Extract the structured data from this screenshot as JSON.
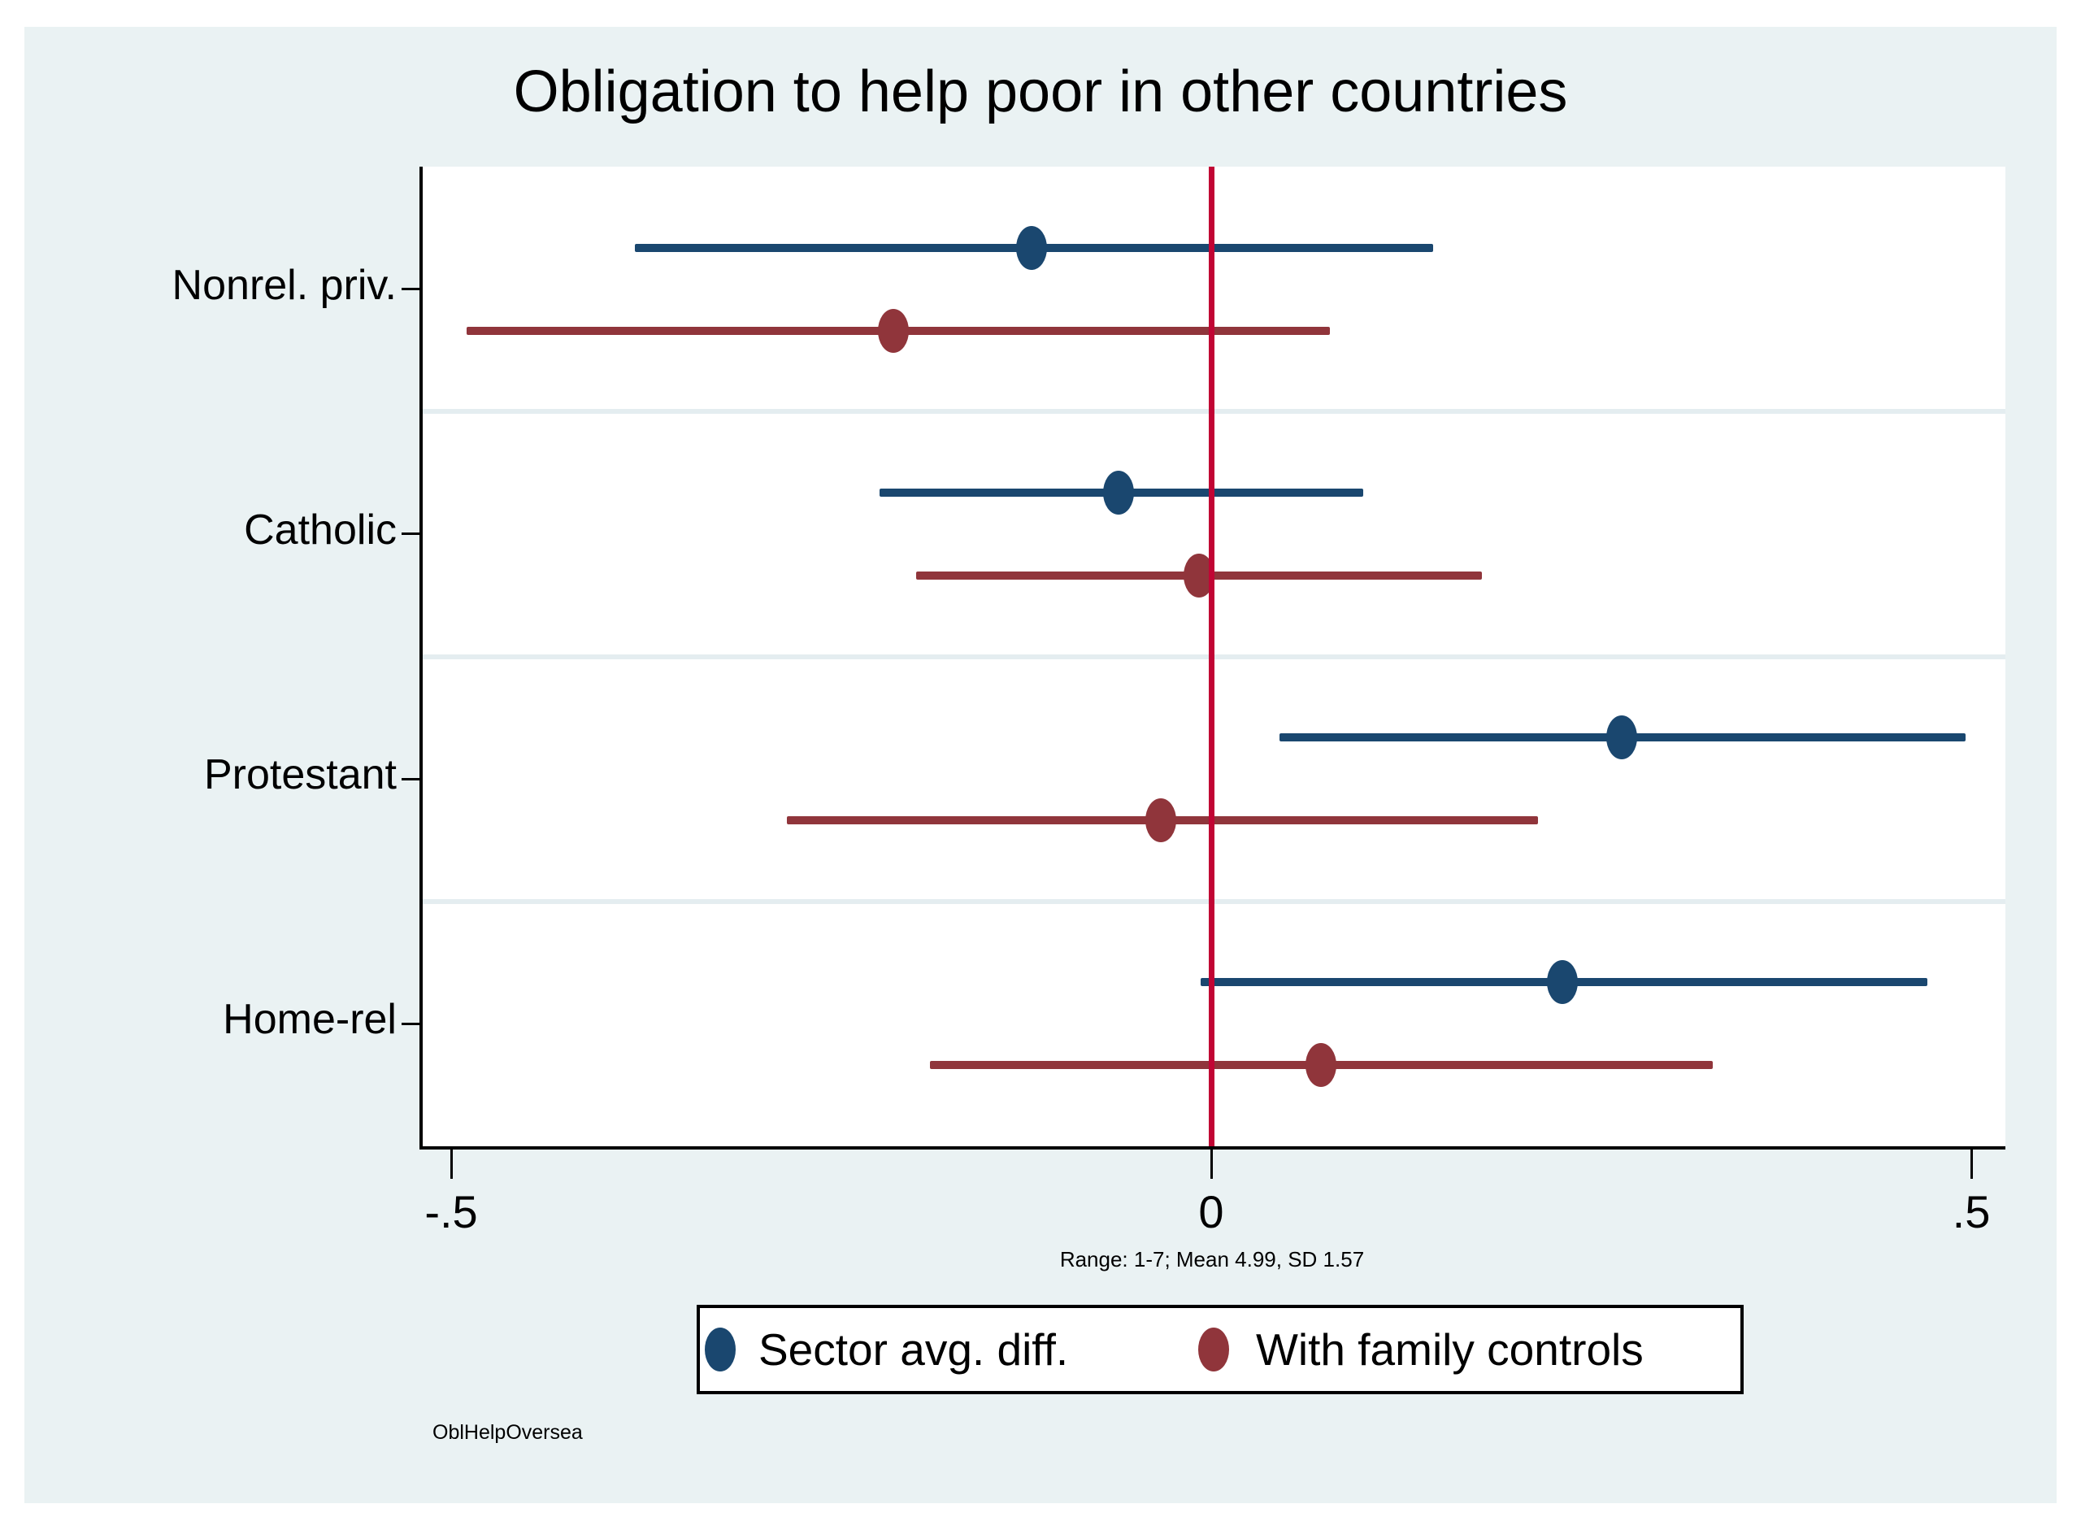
{
  "window": {
    "background": "#FFFFFF"
  },
  "graph": {
    "background": "#EAF2F3",
    "plot_background": "#FFFFFF",
    "watermark": "OblHelpOversea"
  },
  "chart_data": {
    "type": "scatter",
    "subtype": "coefficient-forest-plot",
    "title": "Obligation to help poor in other countries",
    "note": "Range: 1-7; Mean 4.99, SD 1.57",
    "categories": [
      "Nonrel. priv.",
      "Catholic",
      "Protestant",
      "Home-rel"
    ],
    "series": [
      {
        "name": "Sector avg. diff.",
        "color": "#1A476F",
        "marker": "circle",
        "points": [
          {
            "category": "Nonrel. priv.",
            "est": -0.118,
            "ci_low": -0.379,
            "ci_high": 0.146
          },
          {
            "category": "Catholic",
            "est": -0.061,
            "ci_low": -0.218,
            "ci_high": 0.1
          },
          {
            "category": "Protestant",
            "est": 0.27,
            "ci_low": 0.045,
            "ci_high": 0.496
          },
          {
            "category": "Home-rel",
            "est": 0.231,
            "ci_low": -0.007,
            "ci_high": 0.471
          }
        ]
      },
      {
        "name": "With family controls",
        "color": "#90353B",
        "marker": "circle",
        "points": [
          {
            "category": "Nonrel. priv.",
            "est": -0.209,
            "ci_low": -0.49,
            "ci_high": 0.078
          },
          {
            "category": "Catholic",
            "est": -0.008,
            "ci_low": -0.194,
            "ci_high": 0.178
          },
          {
            "category": "Protestant",
            "est": -0.033,
            "ci_low": -0.279,
            "ci_high": 0.215
          },
          {
            "category": "Home-rel",
            "est": 0.072,
            "ci_low": -0.185,
            "ci_high": 0.33
          }
        ]
      }
    ],
    "x_axis": {
      "range": [
        -0.52,
        0.522
      ],
      "ticks": [
        {
          "value": -0.5,
          "label": "-.5"
        },
        {
          "value": 0,
          "label": "0"
        },
        {
          "value": 0.5,
          "label": ".5"
        }
      ]
    },
    "zero_line": {
      "x": 0,
      "color": "#C10534"
    },
    "gridlines": {
      "color": "#E4EDF0",
      "between_categories": true
    },
    "legend": {
      "position": "bottom-center",
      "background": "#FFFFFF",
      "border_color": "#000000",
      "entries": [
        {
          "label": "Sector avg. diff.",
          "color": "#1A476F"
        },
        {
          "label": "With family controls",
          "color": "#90353B"
        }
      ]
    }
  }
}
